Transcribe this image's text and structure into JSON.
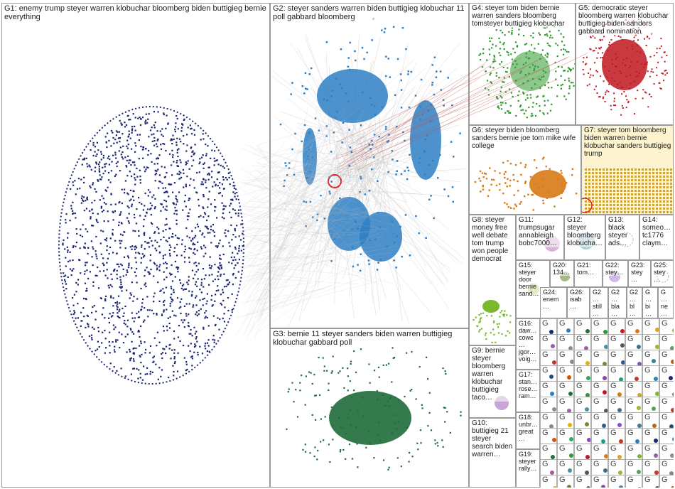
{
  "groups": [
    {
      "id": "G1",
      "label": "G1: enemy trump steyer warren klobuchar bloomberg biden buttigieg bernie everything",
      "color": "#1b2672"
    },
    {
      "id": "G2",
      "label": "G2: steyer sanders warren biden buttigieg klobuchar 11 poll gabbard bloomberg",
      "color": "#2e7fc4"
    },
    {
      "id": "G3",
      "label": "G3: bernie 11 steyer sanders biden warren buttigieg klobuchar gabbard poll",
      "color": "#1f6b3a"
    },
    {
      "id": "G4",
      "label": "G4: steyer tom biden bernie warren sanders bloomberg tomsteyer buttigieg klobuchar",
      "color": "#2c9a2c"
    },
    {
      "id": "G5",
      "label": "G5: democratic steyer bloomberg warren klobuchar buttigieg biden sanders gabbard nomination",
      "color": "#c0181e"
    },
    {
      "id": "G6",
      "label": "G6: steyer biden bloomberg sanders bernie joe tom mike wife college",
      "color": "#d97a16"
    },
    {
      "id": "G7",
      "label": "G7: steyer tom bloomberg biden warren bernie klobuchar sanders buttigieg trump",
      "color": "#d9a520"
    },
    {
      "id": "G8",
      "label": "G8: steyer money free well debate tom trump won people democrat",
      "color": "#7ab82e"
    },
    {
      "id": "G9",
      "label": "G9: bernie steyer bloomberg warren klobuchar buttigieg taco…",
      "color": "#9b59b6"
    },
    {
      "id": "G10",
      "label": "G10: buttigieg 21 steyer search biden warren…",
      "color": "#8e8e8e"
    },
    {
      "id": "G11",
      "label": "G11: trumpsugar annableigh bobc7000…",
      "color": "#a35aa8"
    },
    {
      "id": "G12",
      "label": "G12: steyer bloomberg klobucha…",
      "color": "#4a90a4"
    },
    {
      "id": "G13",
      "label": "G13: black steyer ads…",
      "color": "#555555"
    },
    {
      "id": "G14",
      "label": "G14: someo… tc1776 claym…",
      "color": "#3c6e8f"
    },
    {
      "id": "G15",
      "label": "G15: steyer door bernie sand…",
      "color": "#99b833"
    },
    {
      "id": "G16",
      "label": "G16: daw… cowc… jgor… voig…",
      "color": "#5aa05a"
    },
    {
      "id": "G17",
      "label": "G17: stan… rose… ram…",
      "color": "#c0392b"
    },
    {
      "id": "G18",
      "label": "G18: unbr… great…",
      "color": "#7f8c8d"
    },
    {
      "id": "G19",
      "label": "G19: steyer rally…",
      "color": "#e0b000"
    },
    {
      "id": "G20",
      "label": "G20: 134…",
      "color": "#6c8a3c"
    },
    {
      "id": "G21",
      "label": "G21: tom…",
      "color": "#2f5d8a"
    },
    {
      "id": "G22",
      "label": "G22: stey…",
      "color": "#8a4fbf"
    },
    {
      "id": "G23",
      "label": "G23: stey…",
      "color": "#3a7a9a"
    },
    {
      "id": "G24",
      "label": "G24: enem…",
      "color": "#b5651d"
    },
    {
      "id": "G25",
      "label": "G25: stey…",
      "color": "#1f4e79"
    },
    {
      "id": "G26",
      "label": "G26: isab…",
      "color": "#d35400"
    },
    {
      "id": "G27",
      "label": "G2… still…",
      "color": "#27ae60"
    },
    {
      "id": "G28",
      "label": "G2… bla…",
      "color": "#8e44ad"
    },
    {
      "id": "G29",
      "label": "G2… bl…",
      "color": "#16a085"
    },
    {
      "id": "G30",
      "label": "G… bi…",
      "color": "#c0392b"
    },
    {
      "id": "G31",
      "label": "G… ne…",
      "color": "#2980b9"
    }
  ],
  "small_group_letter": "G",
  "colors": {
    "background": "#ffffff",
    "panel_border": "#9a9a9a",
    "edge": "#bfbfbf",
    "red_edge": "#c0504d",
    "g7_background": "#fdf3cf",
    "highlight": "#e02020"
  }
}
